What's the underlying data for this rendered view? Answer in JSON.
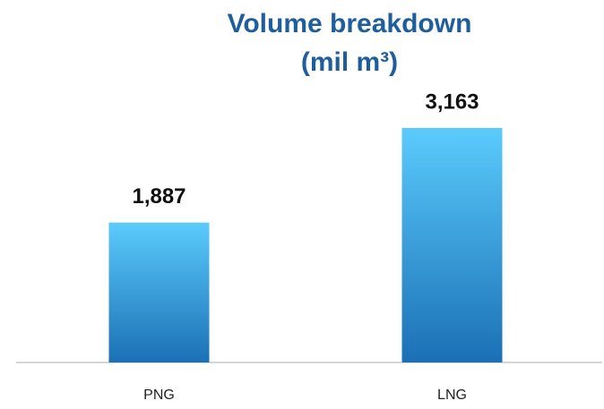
{
  "chart_data": {
    "type": "bar",
    "title": "Volume breakdown (mil m³)",
    "categories": [
      "PNG",
      "LNG"
    ],
    "values": [
      1887,
      3163
    ],
    "value_labels": [
      "1,887",
      "3,163"
    ],
    "gradient": [
      "#5bcbfc",
      "#1b70b5"
    ],
    "title_color": "#1f5e9c"
  }
}
